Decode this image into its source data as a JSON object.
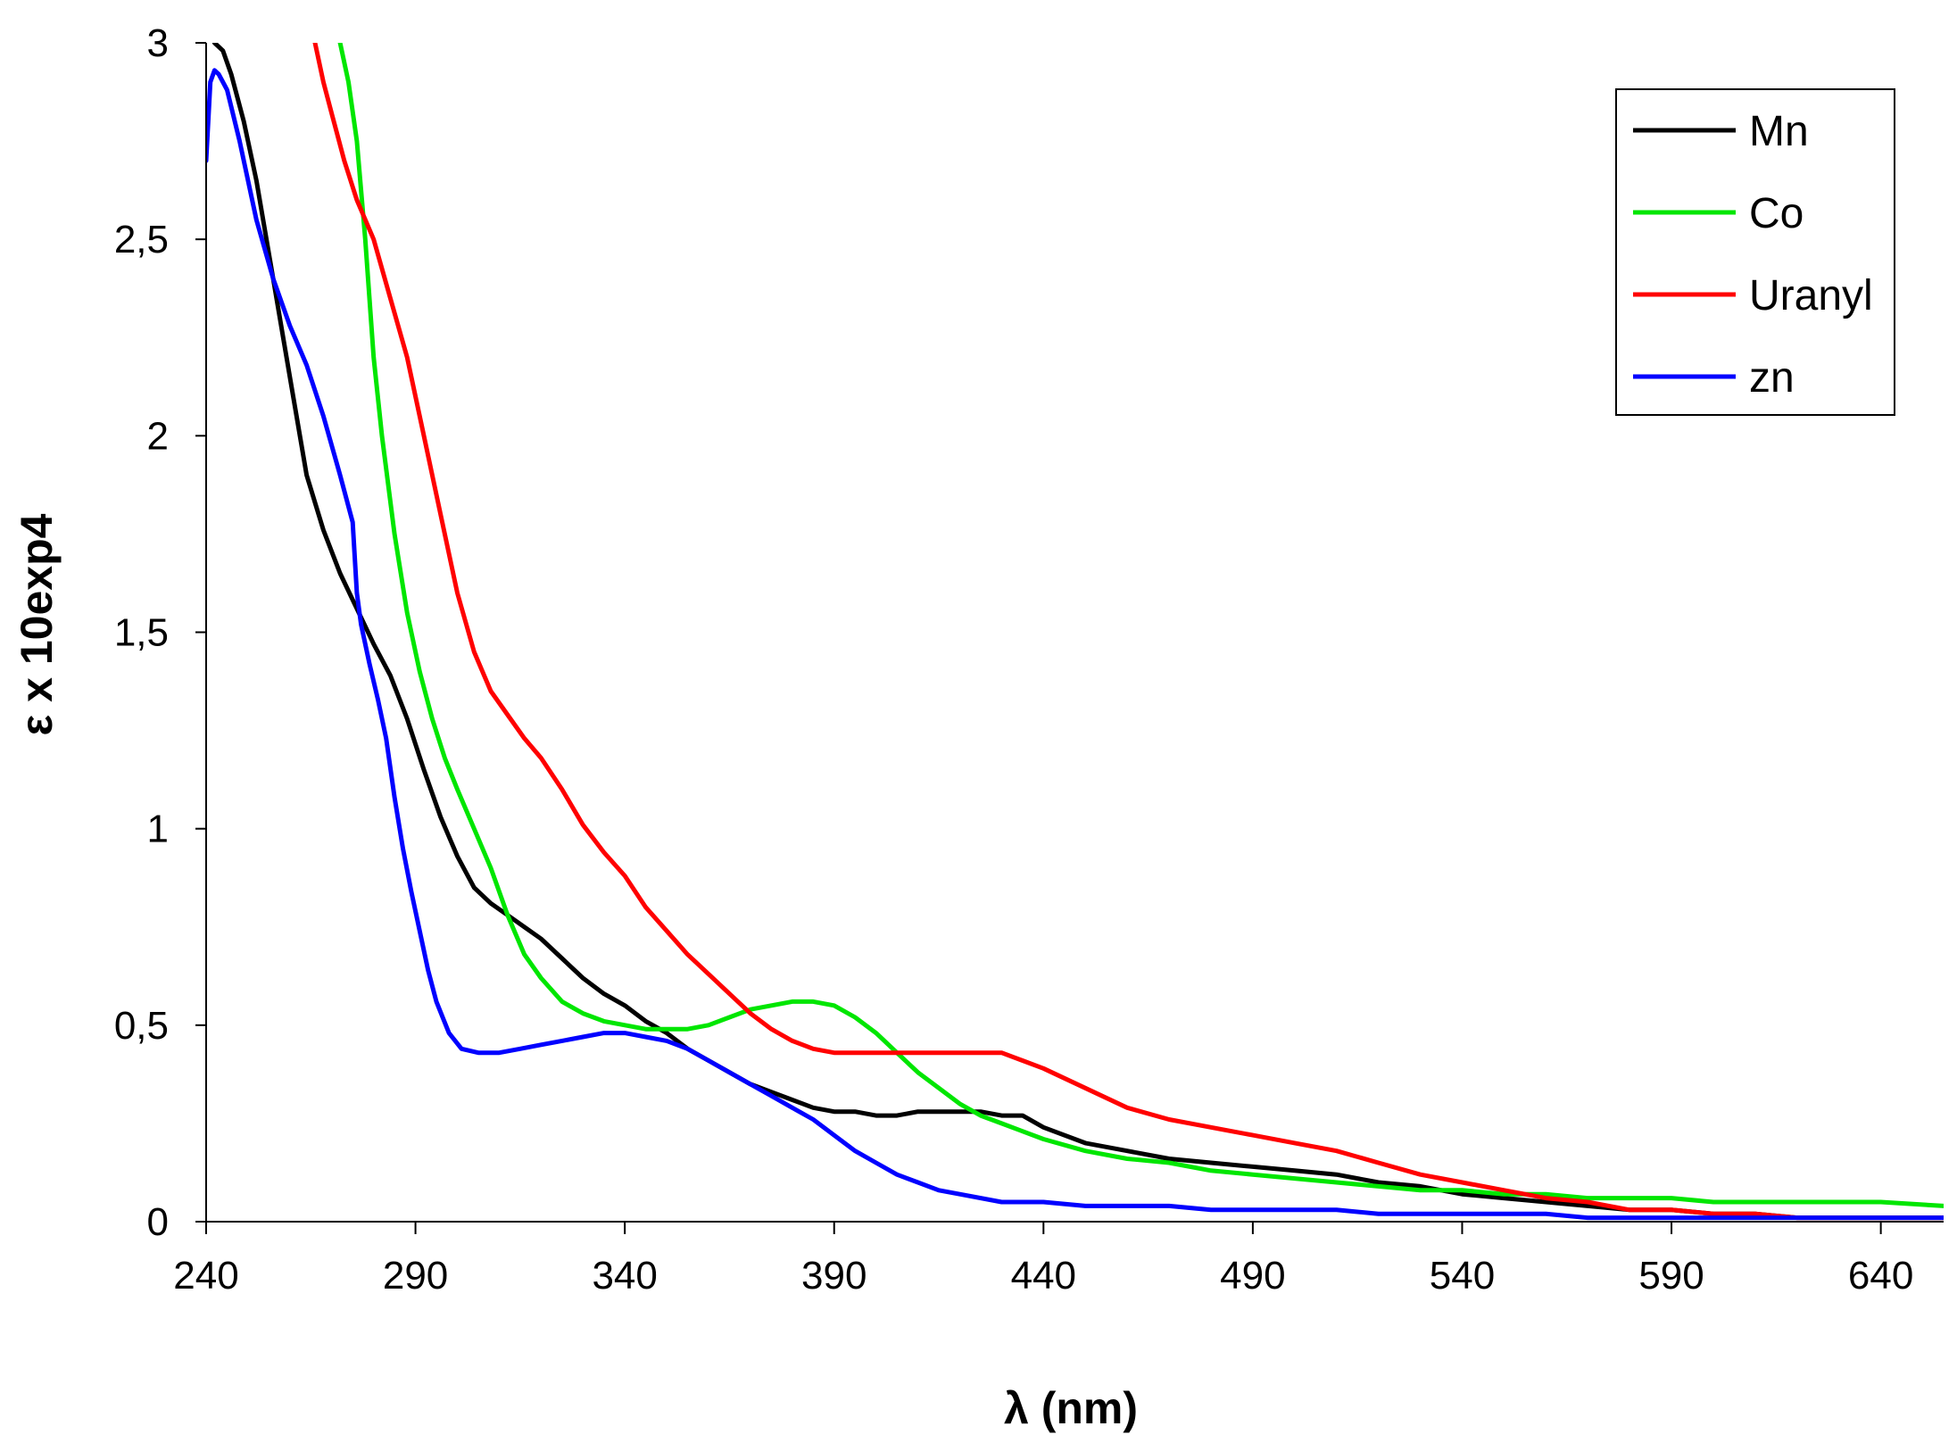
{
  "chart_data": {
    "type": "line",
    "title": "",
    "xlabel": "λ (nm)",
    "ylabel": "ε x 10exp4",
    "xlim": [
      240,
      655
    ],
    "ylim": [
      0,
      3
    ],
    "xticks": [
      240,
      290,
      340,
      390,
      440,
      490,
      540,
      590,
      640
    ],
    "yticks": [
      0,
      0.5,
      1,
      1.5,
      2,
      2.5,
      3
    ],
    "ytick_labels": [
      "0",
      "0,5",
      "1",
      "1,5",
      "2",
      "2,5",
      "3"
    ],
    "grid": false,
    "legend_position": "top-right",
    "series": [
      {
        "name": "Mn",
        "color": "#000000",
        "x": [
          242,
          244,
          246,
          249,
          252,
          256,
          260,
          264,
          268,
          272,
          276,
          280,
          284,
          288,
          292,
          296,
          300,
          304,
          308,
          312,
          316,
          320,
          325,
          330,
          335,
          340,
          345,
          350,
          355,
          360,
          365,
          370,
          375,
          380,
          385,
          390,
          395,
          400,
          405,
          410,
          415,
          420,
          425,
          430,
          435,
          440,
          450,
          460,
          470,
          480,
          490,
          500,
          510,
          520,
          530,
          540,
          550,
          560,
          570,
          580,
          590,
          600,
          610,
          620,
          630,
          640,
          655
        ],
        "y": [
          3.0,
          2.98,
          2.92,
          2.8,
          2.65,
          2.4,
          2.15,
          1.9,
          1.76,
          1.65,
          1.56,
          1.47,
          1.39,
          1.28,
          1.15,
          1.03,
          0.93,
          0.85,
          0.81,
          0.78,
          0.75,
          0.72,
          0.67,
          0.62,
          0.58,
          0.55,
          0.51,
          0.48,
          0.44,
          0.41,
          0.38,
          0.35,
          0.33,
          0.31,
          0.29,
          0.28,
          0.28,
          0.27,
          0.27,
          0.28,
          0.28,
          0.28,
          0.28,
          0.27,
          0.27,
          0.24,
          0.2,
          0.18,
          0.16,
          0.15,
          0.14,
          0.13,
          0.12,
          0.1,
          0.09,
          0.07,
          0.06,
          0.05,
          0.04,
          0.03,
          0.03,
          0.02,
          0.02,
          0.01,
          0.01,
          0.01,
          0.01
        ]
      },
      {
        "name": "Co",
        "color": "#00e600",
        "x": [
          272,
          274,
          276,
          278,
          280,
          282,
          285,
          288,
          291,
          294,
          297,
          300,
          304,
          308,
          312,
          316,
          320,
          325,
          330,
          335,
          340,
          345,
          350,
          355,
          360,
          365,
          370,
          375,
          380,
          385,
          390,
          395,
          400,
          405,
          410,
          415,
          420,
          425,
          430,
          440,
          450,
          460,
          470,
          480,
          490,
          500,
          510,
          520,
          530,
          540,
          550,
          560,
          570,
          580,
          590,
          600,
          610,
          620,
          630,
          640,
          655
        ],
        "y": [
          3.0,
          2.9,
          2.75,
          2.5,
          2.2,
          2.0,
          1.75,
          1.55,
          1.4,
          1.28,
          1.18,
          1.1,
          1.0,
          0.9,
          0.78,
          0.68,
          0.62,
          0.56,
          0.53,
          0.51,
          0.5,
          0.49,
          0.49,
          0.49,
          0.5,
          0.52,
          0.54,
          0.55,
          0.56,
          0.56,
          0.55,
          0.52,
          0.48,
          0.43,
          0.38,
          0.34,
          0.3,
          0.27,
          0.25,
          0.21,
          0.18,
          0.16,
          0.15,
          0.13,
          0.12,
          0.11,
          0.1,
          0.09,
          0.08,
          0.08,
          0.07,
          0.07,
          0.06,
          0.06,
          0.06,
          0.05,
          0.05,
          0.05,
          0.05,
          0.05,
          0.04
        ]
      },
      {
        "name": "Uranyl",
        "color": "#ff0000",
        "x": [
          266,
          268,
          270,
          273,
          276,
          280,
          284,
          288,
          292,
          296,
          300,
          304,
          308,
          312,
          316,
          320,
          325,
          330,
          335,
          340,
          345,
          350,
          355,
          360,
          365,
          370,
          375,
          380,
          385,
          390,
          395,
          400,
          405,
          410,
          415,
          420,
          425,
          430,
          435,
          440,
          450,
          460,
          470,
          480,
          490,
          500,
          510,
          520,
          530,
          540,
          550,
          560,
          570,
          580,
          590,
          600,
          610,
          620,
          630,
          640,
          655
        ],
        "y": [
          3.0,
          2.9,
          2.82,
          2.7,
          2.6,
          2.5,
          2.35,
          2.2,
          2.0,
          1.8,
          1.6,
          1.45,
          1.35,
          1.29,
          1.23,
          1.18,
          1.1,
          1.01,
          0.94,
          0.88,
          0.8,
          0.74,
          0.68,
          0.63,
          0.58,
          0.53,
          0.49,
          0.46,
          0.44,
          0.43,
          0.43,
          0.43,
          0.43,
          0.43,
          0.43,
          0.43,
          0.43,
          0.43,
          0.41,
          0.39,
          0.34,
          0.29,
          0.26,
          0.24,
          0.22,
          0.2,
          0.18,
          0.15,
          0.12,
          0.1,
          0.08,
          0.06,
          0.05,
          0.03,
          0.03,
          0.02,
          0.02,
          0.01,
          0.01,
          0.01,
          0.01
        ]
      },
      {
        "name": "zn",
        "color": "#0000ff",
        "x": [
          240,
          241,
          242,
          243,
          245,
          248,
          252,
          256,
          260,
          264,
          268,
          272,
          275,
          276,
          277,
          279,
          281,
          283,
          285,
          287,
          289,
          291,
          293,
          295,
          298,
          301,
          305,
          310,
          315,
          320,
          325,
          330,
          335,
          340,
          345,
          350,
          355,
          360,
          365,
          370,
          375,
          380,
          385,
          390,
          395,
          400,
          405,
          410,
          415,
          420,
          430,
          440,
          450,
          460,
          470,
          480,
          490,
          500,
          510,
          520,
          530,
          540,
          550,
          560,
          570,
          580,
          590,
          600,
          610,
          620,
          630,
          640,
          655
        ],
        "y": [
          2.7,
          2.9,
          2.93,
          2.92,
          2.88,
          2.75,
          2.55,
          2.4,
          2.28,
          2.18,
          2.05,
          1.9,
          1.78,
          1.6,
          1.52,
          1.42,
          1.33,
          1.23,
          1.08,
          0.95,
          0.84,
          0.74,
          0.64,
          0.56,
          0.48,
          0.44,
          0.43,
          0.43,
          0.44,
          0.45,
          0.46,
          0.47,
          0.48,
          0.48,
          0.47,
          0.46,
          0.44,
          0.41,
          0.38,
          0.35,
          0.32,
          0.29,
          0.26,
          0.22,
          0.18,
          0.15,
          0.12,
          0.1,
          0.08,
          0.07,
          0.05,
          0.05,
          0.04,
          0.04,
          0.04,
          0.03,
          0.03,
          0.03,
          0.03,
          0.02,
          0.02,
          0.02,
          0.02,
          0.02,
          0.01,
          0.01,
          0.01,
          0.01,
          0.01,
          0.01,
          0.01,
          0.01,
          0.01
        ]
      }
    ]
  }
}
